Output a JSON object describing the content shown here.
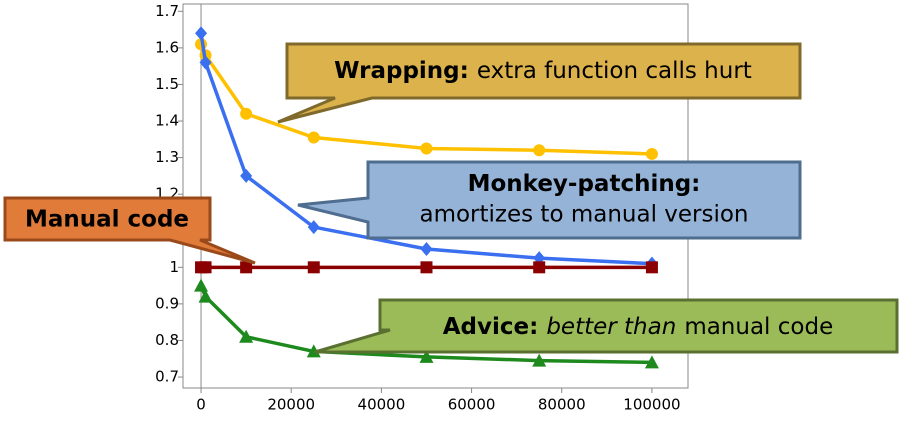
{
  "chart_data": {
    "type": "line",
    "x": [
      0,
      1000,
      10000,
      25000,
      50000,
      75000,
      100000
    ],
    "series": [
      {
        "color": "#ffc000",
        "marker": "circle",
        "values": [
          1.61,
          1.58,
          1.42,
          1.355,
          1.325,
          1.32,
          1.31
        ]
      },
      {
        "color": "#3a6ff0",
        "marker": "diamond",
        "values": [
          1.64,
          1.56,
          1.25,
          1.11,
          1.05,
          1.025,
          1.01
        ]
      },
      {
        "color": "#8b0000",
        "marker": "square",
        "values": [
          1,
          1,
          1,
          1,
          1,
          1,
          1
        ]
      },
      {
        "color": "#1e8a1e",
        "marker": "triangle",
        "values": [
          0.95,
          0.92,
          0.81,
          0.77,
          0.755,
          0.745,
          0.74
        ]
      }
    ],
    "xlim": [
      -4000,
      108000
    ],
    "ylim": [
      0.67,
      1.72
    ],
    "xticks": [
      0,
      20000,
      40000,
      60000,
      80000,
      100000
    ],
    "yticks": [
      0.7,
      0.8,
      0.9,
      1,
      1.1,
      1.2,
      1.3,
      1.4,
      1.5,
      1.6,
      1.7
    ],
    "grid": false,
    "annotations": [
      {
        "bold": "Wrapping:",
        "text": "extra function calls hurt"
      },
      {
        "bold": "Monkey-patching:",
        "text": "amortizes to manual version"
      },
      {
        "bold": "Manual code"
      },
      {
        "bold": "Advice:",
        "italic": "better than",
        "text": "manual code"
      }
    ]
  }
}
